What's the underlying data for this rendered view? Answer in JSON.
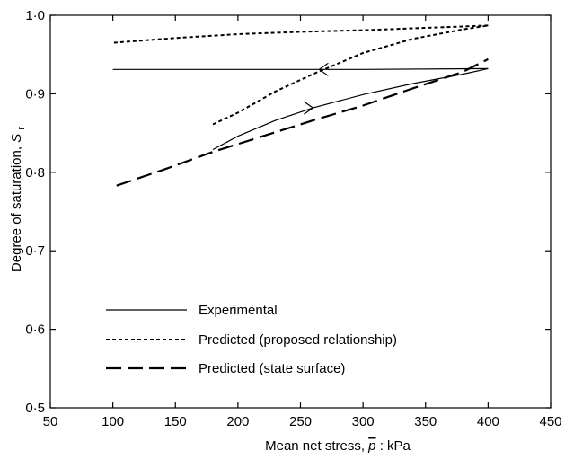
{
  "chart_data": {
    "type": "line",
    "title": "",
    "xlabel_prefix": "Mean net stress,",
    "xlabel_symbol": "p",
    "xlabel_suffix": ": kPa",
    "ylabel_main": "Degree of saturation,",
    "ylabel_symbol": "S",
    "ylabel_subscript": "r",
    "xlim": [
      50,
      450
    ],
    "ylim": [
      0.5,
      1.0
    ],
    "xticks": [
      50,
      100,
      150,
      200,
      250,
      300,
      350,
      400,
      450
    ],
    "xtick_labels": [
      "50",
      "100",
      "150",
      "200",
      "250",
      "300",
      "350",
      "400",
      "450"
    ],
    "yticks": [
      0.5,
      0.6,
      0.7,
      0.8,
      0.9,
      1.0
    ],
    "ytick_labels": [
      "0·5",
      "0·6",
      "0·7",
      "0·8",
      "0·9",
      "1·0"
    ],
    "grid": false,
    "legend_position": "lower-left",
    "series": [
      {
        "name": "Experimental",
        "style": "solid",
        "segments": [
          [
            [
              180,
              0.829
            ],
            [
              200,
              0.846
            ],
            [
              230,
              0.866
            ],
            [
              260,
              0.882
            ],
            [
              300,
              0.899
            ],
            [
              340,
              0.913
            ],
            [
              380,
              0.925
            ],
            [
              400,
              0.932
            ]
          ],
          [
            [
              400,
              0.932
            ],
            [
              300,
              0.931
            ],
            [
              200,
              0.931
            ],
            [
              100,
              0.931
            ]
          ]
        ],
        "arrows": [
          {
            "at": [
              260,
              0.882
            ],
            "direction": "right"
          },
          {
            "at": [
              265,
              0.931
            ],
            "direction": "left"
          }
        ]
      },
      {
        "name": "Predicted (proposed relationship)",
        "style": "dotted",
        "segments": [
          [
            [
              180,
              0.861
            ],
            [
              200,
              0.876
            ],
            [
              230,
              0.903
            ],
            [
              260,
              0.925
            ],
            [
              300,
              0.952
            ],
            [
              340,
              0.97
            ],
            [
              380,
              0.982
            ],
            [
              400,
              0.987
            ]
          ],
          [
            [
              400,
              0.987
            ],
            [
              350,
              0.984
            ],
            [
              300,
              0.981
            ],
            [
              250,
              0.979
            ],
            [
              200,
              0.976
            ],
            [
              150,
              0.971
            ],
            [
              100,
              0.965
            ]
          ]
        ]
      },
      {
        "name": "Predicted (state surface)",
        "style": "dashed",
        "segments": [
          [
            [
              103,
              0.783
            ],
            [
              140,
              0.803
            ],
            [
              180,
              0.826
            ],
            [
              220,
              0.846
            ],
            [
              260,
              0.866
            ],
            [
              300,
              0.885
            ],
            [
              340,
              0.907
            ],
            [
              380,
              0.928
            ],
            [
              400,
              0.944
            ]
          ]
        ]
      }
    ]
  }
}
